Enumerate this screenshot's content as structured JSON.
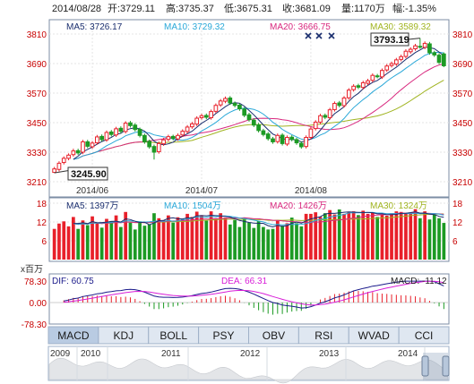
{
  "header": {
    "date": "2014/08/28",
    "open": "开:3729.11",
    "high": "高:3735.37",
    "low": "低:3675.31",
    "close": "收:3681.09",
    "volume": "量:1170万",
    "change": "幅:-1.35%"
  },
  "price_panel": {
    "ma_labels": {
      "ma5": "MA5: 3726.17",
      "ma10": "MA10: 3729.32",
      "ma20": "MA20: 3666.75",
      "ma30": "MA30: 3589.32"
    },
    "annotations": {
      "high": "3793.19",
      "low": "3245.90"
    },
    "x_labels": [
      "2014/06",
      "2014/07",
      "2014/08"
    ]
  },
  "volume_panel": {
    "ma_labels": {
      "ma5": "MA5: 1397万",
      "ma10": "MA10: 1504万",
      "ma20": "MA20: 1426万",
      "ma30": "MA30: 1324万"
    },
    "unit": "x百万"
  },
  "macd_panel": {
    "dif": "DIF: 60.75",
    "dea": "DEA: 66.31",
    "macd": "MACD: -11.12"
  },
  "tabs": [
    "MACD",
    "KDJ",
    "BOLL",
    "PSY",
    "OBV",
    "RSI",
    "WVAD",
    "CCI"
  ],
  "active_tab": "MACD",
  "overview": {
    "years": [
      "2009",
      "2010",
      "2011",
      "2012",
      "2013",
      "2014"
    ]
  },
  "colors": {
    "up": "#e8202a",
    "down": "#1c9a24",
    "ma5": "#1a2e6e",
    "ma10": "#2aa8d8",
    "ma20": "#d8287e",
    "ma30": "#a0b420",
    "dif": "#1a1a8a",
    "dea": "#d81ed8",
    "axis_label": "#c80000",
    "panel_bg": "#ffffff",
    "tab_bg": "#dfe7f1",
    "tab_active": "#b9cbe2"
  },
  "chart_data": [
    {
      "type": "candlestick",
      "panel": "price",
      "ylim": [
        3210,
        3810
      ],
      "yticks": [
        3210,
        3330,
        3450,
        3570,
        3690,
        3810
      ],
      "x_ticks": [
        {
          "index": 8,
          "label": "2014/06"
        },
        {
          "index": 31,
          "label": "2014/07"
        },
        {
          "index": 54,
          "label": "2014/08"
        }
      ],
      "close": [
        3262,
        3285,
        3305,
        3318,
        3335,
        3327,
        3372,
        3354,
        3367,
        3392,
        3381,
        3410,
        3402,
        3425,
        3415,
        3448,
        3438,
        3422,
        3398,
        3372,
        3352,
        3330,
        3365,
        3380,
        3393,
        3386,
        3398,
        3415,
        3432,
        3445,
        3468,
        3478,
        3472,
        3495,
        3520,
        3538,
        3548,
        3530,
        3520,
        3506,
        3480,
        3462,
        3440,
        3418,
        3402,
        3385,
        3372,
        3398,
        3365,
        3390,
        3382,
        3368,
        3352,
        3390,
        3424,
        3452,
        3478,
        3472,
        3502,
        3528,
        3520,
        3550,
        3582,
        3598,
        3594,
        3612,
        3620,
        3642,
        3638,
        3662,
        3680,
        3690,
        3705,
        3718,
        3740,
        3748,
        3762,
        3758,
        3772,
        3734,
        3725,
        3695,
        3681
      ],
      "open": [
        3248,
        3260,
        3288,
        3305,
        3320,
        3336,
        3330,
        3372,
        3352,
        3368,
        3394,
        3380,
        3412,
        3400,
        3427,
        3414,
        3449,
        3440,
        3423,
        3398,
        3374,
        3353,
        3332,
        3364,
        3382,
        3394,
        3384,
        3400,
        3414,
        3433,
        3444,
        3470,
        3479,
        3470,
        3496,
        3522,
        3537,
        3550,
        3528,
        3521,
        3505,
        3482,
        3460,
        3441,
        3417,
        3404,
        3384,
        3373,
        3399,
        3363,
        3391,
        3381,
        3366,
        3353,
        3390,
        3426,
        3452,
        3479,
        3470,
        3503,
        3530,
        3519,
        3551,
        3584,
        3600,
        3593,
        3610,
        3622,
        3640,
        3636,
        3664,
        3682,
        3688,
        3707,
        3719,
        3738,
        3750,
        3760,
        3756,
        3770,
        3734,
        3724,
        3729
      ],
      "high": [
        3270,
        3293,
        3313,
        3325,
        3344,
        3344,
        3380,
        3380,
        3375,
        3400,
        3402,
        3418,
        3420,
        3433,
        3435,
        3456,
        3457,
        3448,
        3430,
        3405,
        3381,
        3361,
        3373,
        3388,
        3401,
        3401,
        3406,
        3423,
        3440,
        3453,
        3476,
        3486,
        3487,
        3503,
        3528,
        3546,
        3556,
        3558,
        3536,
        3529,
        3513,
        3490,
        3468,
        3449,
        3425,
        3412,
        3392,
        3406,
        3407,
        3398,
        3399,
        3389,
        3374,
        3398,
        3432,
        3460,
        3486,
        3487,
        3510,
        3536,
        3538,
        3558,
        3590,
        3606,
        3608,
        3620,
        3628,
        3650,
        3648,
        3670,
        3688,
        3698,
        3713,
        3726,
        3748,
        3756,
        3770,
        3793,
        3780,
        3778,
        3742,
        3732,
        3735
      ],
      "low": [
        3245.9,
        3252,
        3280,
        3297,
        3312,
        3319,
        3322,
        3346,
        3344,
        3360,
        3373,
        3372,
        3394,
        3392,
        3407,
        3406,
        3430,
        3414,
        3390,
        3364,
        3344,
        3300,
        3324,
        3356,
        3374,
        3378,
        3376,
        3392,
        3406,
        3425,
        3436,
        3462,
        3464,
        3462,
        3488,
        3514,
        3529,
        3522,
        3512,
        3498,
        3472,
        3454,
        3432,
        3410,
        3394,
        3377,
        3364,
        3365,
        3357,
        3355,
        3374,
        3360,
        3344,
        3345,
        3382,
        3418,
        3444,
        3464,
        3462,
        3495,
        3512,
        3511,
        3543,
        3576,
        3586,
        3585,
        3602,
        3614,
        3630,
        3628,
        3656,
        3674,
        3680,
        3699,
        3711,
        3730,
        3742,
        3750,
        3748,
        3726,
        3717,
        3687,
        3675.31
      ],
      "ma_values": {
        "ma5": 3726.17,
        "ma10": 3729.32,
        "ma20": 3666.75,
        "ma30": 3589.32
      },
      "high_annotation": 3793.19,
      "low_annotation": 3245.9
    },
    {
      "type": "bar",
      "panel": "volume",
      "unit": "百万",
      "ylim": [
        0,
        18
      ],
      "yticks": [
        6,
        12,
        18
      ],
      "values": [
        9.8,
        11.5,
        12.2,
        10.6,
        13.6,
        9.8,
        12.5,
        11.0,
        13.8,
        11.6,
        10.2,
        13.0,
        12.3,
        14.1,
        10.4,
        15.2,
        11.8,
        9.6,
        12.2,
        10.8,
        11.2,
        14.8,
        13.2,
        12.6,
        14.1,
        11.8,
        13.5,
        12.9,
        14.6,
        13.6,
        15.3,
        14.0,
        12.4,
        15.4,
        13.0,
        14.8,
        13.4,
        11.2,
        12.6,
        10.4,
        13.3,
        11.8,
        10.1,
        12.3,
        10.4,
        9.6,
        9.8,
        12.4,
        10.8,
        11.6,
        13.4,
        11.6,
        10.6,
        14.6,
        14.6,
        15.1,
        13.6,
        14.8,
        15.8,
        14.4,
        16.0,
        14.6,
        15.3,
        15.4,
        14.2,
        15.6,
        14.6,
        15.0,
        13.6,
        14.3,
        14.0,
        14.8,
        15.4,
        15.2,
        14.6,
        15.0,
        16.1,
        13.2,
        15.4,
        12.8,
        14.4,
        13.2,
        11.7
      ],
      "ma_values": {
        "ma5": 13.97,
        "ma10": 15.04,
        "ma20": 14.26,
        "ma30": 13.24
      }
    },
    {
      "type": "line",
      "panel": "macd",
      "ylim": [
        -78.3,
        78.3
      ],
      "yticks": [
        78.3,
        0,
        -78.3
      ],
      "dif": 60.75,
      "dea": 66.31,
      "macd": -11.12
    }
  ]
}
